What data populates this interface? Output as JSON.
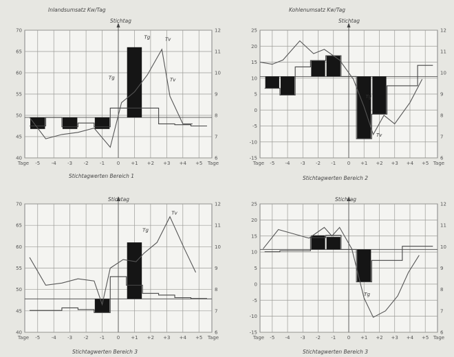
{
  "chart_data": [
    {
      "type": "line",
      "header": "Inlandsumsatz Kw/Tag",
      "top_label": "Stichtag",
      "caption": "Stichtagwerten Bereich 1",
      "x_ticks": [
        "Tage",
        "-5",
        "-4",
        "-3",
        "-2",
        "-1",
        "0",
        "+1",
        "+2",
        "+3",
        "+4",
        "+5",
        "Tage"
      ],
      "x": [
        -5,
        -4,
        -3,
        -2,
        -1,
        0,
        1,
        2,
        3,
        4,
        5
      ],
      "xlim": [
        -5.8,
        5.8
      ],
      "y_left_ticks": [
        "70",
        "65",
        "60",
        "55",
        "50",
        "45",
        "40"
      ],
      "ylim": [
        40,
        70
      ],
      "y_right_ticks": [
        "12",
        "11",
        "10",
        "9",
        "8",
        "7",
        "6"
      ],
      "ylim_right": [
        6,
        12
      ],
      "baseline": 49.5,
      "step_values": [
        47.5,
        49.5,
        47.3,
        48.2,
        47.3,
        51.7,
        51.7,
        51.7,
        48,
        47.8,
        47.5
      ],
      "bars": [
        {
          "x": -5,
          "value": 46.8
        },
        {
          "x": -3,
          "value": 46.8
        },
        {
          "x": -1,
          "value": 46.8
        },
        {
          "x": 1,
          "value": 66
        }
      ],
      "line_x": [
        -5.5,
        -4.5,
        -3.5,
        -2.5,
        -1.5,
        -0.5,
        0.2,
        1,
        1.8,
        2.7,
        3.2,
        4,
        4.6
      ],
      "line_values": [
        7.9,
        6.9,
        7.1,
        7.2,
        7.4,
        6.5,
        8.6,
        9.1,
        9.9,
        11.1,
        8.9,
        7.6,
        7.6
      ],
      "annotations": [
        {
          "text": "Tg",
          "x": 1.6,
          "y": 11.6
        },
        {
          "text": "Tv",
          "x": 2.9,
          "y": 11.5
        },
        {
          "text": "Tg",
          "x": -0.6,
          "y": 9.7
        },
        {
          "text": "Tv",
          "x": 3.2,
          "y": 9.6
        }
      ],
      "colors": {
        "bars": "#151515",
        "line": "#555555",
        "grid": "#9a9a96"
      }
    },
    {
      "type": "line",
      "header": "Kohlenumsatz Kw/Tag",
      "top_label": "Stichtag",
      "caption": "Stichtagwerten Bereich 2",
      "x_ticks": [
        "Tage",
        "-5",
        "-4",
        "-3",
        "-2",
        "-1",
        "0",
        "+1",
        "+2",
        "+3",
        "+4",
        "+5",
        "Tage"
      ],
      "x": [
        -5,
        -4,
        -3,
        -2,
        -1,
        0,
        1,
        2,
        3,
        4,
        5
      ],
      "xlim": [
        -5.8,
        5.8
      ],
      "y_left_ticks": [
        "25",
        "20",
        "15",
        "10",
        "5",
        "0",
        "-5",
        "-10",
        "-15"
      ],
      "ylim": [
        -15,
        25
      ],
      "y_right_ticks": [
        "12",
        "11",
        "10",
        "9",
        "8",
        "7",
        "6"
      ],
      "ylim_right": [
        6,
        12
      ],
      "baseline": 10.5,
      "step_values": [
        6.8,
        4.7,
        13.5,
        15.5,
        17,
        10.5,
        -9,
        -1.3,
        7.6,
        7.6,
        14
      ],
      "bars": [
        {
          "x": -5,
          "value": 6.8
        },
        {
          "x": -4,
          "value": 4.7
        },
        {
          "x": -2,
          "value": 15.5
        },
        {
          "x": -1,
          "value": 17
        },
        {
          "x": 1,
          "value": -9
        },
        {
          "x": 2,
          "value": -1.3
        }
      ],
      "line_x": [
        -5.8,
        -5,
        -4.3,
        -3.2,
        -2.3,
        -1.6,
        -0.6,
        0.3,
        1,
        1.6,
        2.3,
        3,
        4,
        4.8
      ],
      "line_values": [
        10.5,
        10.4,
        10.6,
        11.5,
        10.9,
        11.1,
        10.6,
        9.7,
        8.4,
        7.1,
        8.0,
        7.6,
        8.6,
        9.7
      ],
      "annotations": [
        {
          "text": "Tg",
          "x": 1.1,
          "y": 8.8
        },
        {
          "text": "Tv",
          "x": 1.8,
          "y": 7.0
        }
      ],
      "colors": {
        "bars": "#151515",
        "line": "#555555",
        "grid": "#9a9a96"
      }
    },
    {
      "type": "line",
      "header": "",
      "top_label": "Stichtag",
      "caption": "Stichtagwerten Bereich 3",
      "x_ticks": [
        "Tage",
        "-5",
        "-4",
        "-3",
        "-2",
        "-1",
        "0",
        "+1",
        "+2",
        "+3",
        "+4",
        "+5",
        "Tage"
      ],
      "x": [
        -5,
        -4,
        -3,
        -2,
        -1,
        0,
        1,
        2,
        3,
        4,
        5
      ],
      "xlim": [
        -5.8,
        5.8
      ],
      "y_left_ticks": [
        "70",
        "65",
        "60",
        "55",
        "50",
        "45",
        "40"
      ],
      "ylim": [
        40,
        70
      ],
      "y_right_ticks": [
        "12",
        "11",
        "10",
        "9",
        "8",
        "7",
        "6"
      ],
      "ylim_right": [
        6,
        12
      ],
      "baseline": 47.8,
      "step_values": [
        45.1,
        45.1,
        45.7,
        45.3,
        44.6,
        53,
        51,
        49.1,
        48.7,
        48.1,
        47.9
      ],
      "bars": [
        {
          "x": -1,
          "value": 44.6
        },
        {
          "x": 1,
          "value": 61
        }
      ],
      "line_x": [
        -5.5,
        -4.5,
        -3.5,
        -2.5,
        -1.5,
        -1,
        -0.5,
        0.3,
        1.1,
        1.6,
        2.4,
        3.2,
        4.1,
        4.8
      ],
      "line_values": [
        9.5,
        8.2,
        8.3,
        8.5,
        8.4,
        7.3,
        9.0,
        9.4,
        9.3,
        9.7,
        10.2,
        11.4,
        9.9,
        8.8
      ],
      "annotations": [
        {
          "text": "Tg",
          "x": 1.5,
          "y": 10.7
        },
        {
          "text": "Tv",
          "x": 3.3,
          "y": 11.5
        }
      ],
      "colors": {
        "bars": "#151515",
        "line": "#555555",
        "grid": "#9a9a96"
      }
    },
    {
      "type": "line",
      "header": "",
      "top_label": "Stichtag",
      "caption": "Stichtagwerten Bereich 3",
      "x_ticks": [
        "Tage",
        "-5",
        "-4",
        "-3",
        "-2",
        "-1",
        "0",
        "+1",
        "+2",
        "+3",
        "+4",
        "+5",
        "Tage"
      ],
      "x": [
        -5,
        -4,
        -3,
        -2,
        -1,
        0,
        1,
        2,
        3,
        4,
        5
      ],
      "xlim": [
        -5.8,
        5.8
      ],
      "y_left_ticks": [
        "25",
        "20",
        "15",
        "10",
        "5",
        "0",
        "-5",
        "-10",
        "-15"
      ],
      "ylim": [
        -15,
        25
      ],
      "y_right_ticks": [
        "12",
        "11",
        "10",
        "9",
        "8",
        "7",
        "6"
      ],
      "ylim_right": [
        6,
        12
      ],
      "baseline": 10.8,
      "step_values": [
        10.1,
        10.4,
        10.4,
        14.5,
        15.2,
        10.8,
        0.7,
        7.4,
        7.4,
        11.8,
        11.8
      ],
      "bars": [
        {
          "x": -2,
          "value": 15.2
        },
        {
          "x": -1,
          "value": 14.7
        },
        {
          "x": 1,
          "value": 0.7
        }
      ],
      "line_x": [
        -5.6,
        -4.6,
        -3.6,
        -2.6,
        -1.6,
        -1.1,
        -0.6,
        0.2,
        1,
        1.6,
        2.4,
        3.2,
        3.9,
        4.6
      ],
      "line_values": [
        9.9,
        10.8,
        10.6,
        10.4,
        10.9,
        10.5,
        10.9,
        9.9,
        7.6,
        6.7,
        7.0,
        7.7,
        8.8,
        9.6
      ],
      "annotations": [
        {
          "text": "Tg",
          "x": 1.0,
          "y": 7.7
        }
      ],
      "colors": {
        "bars": "#151515",
        "line": "#555555",
        "grid": "#9a9a96"
      }
    }
  ]
}
